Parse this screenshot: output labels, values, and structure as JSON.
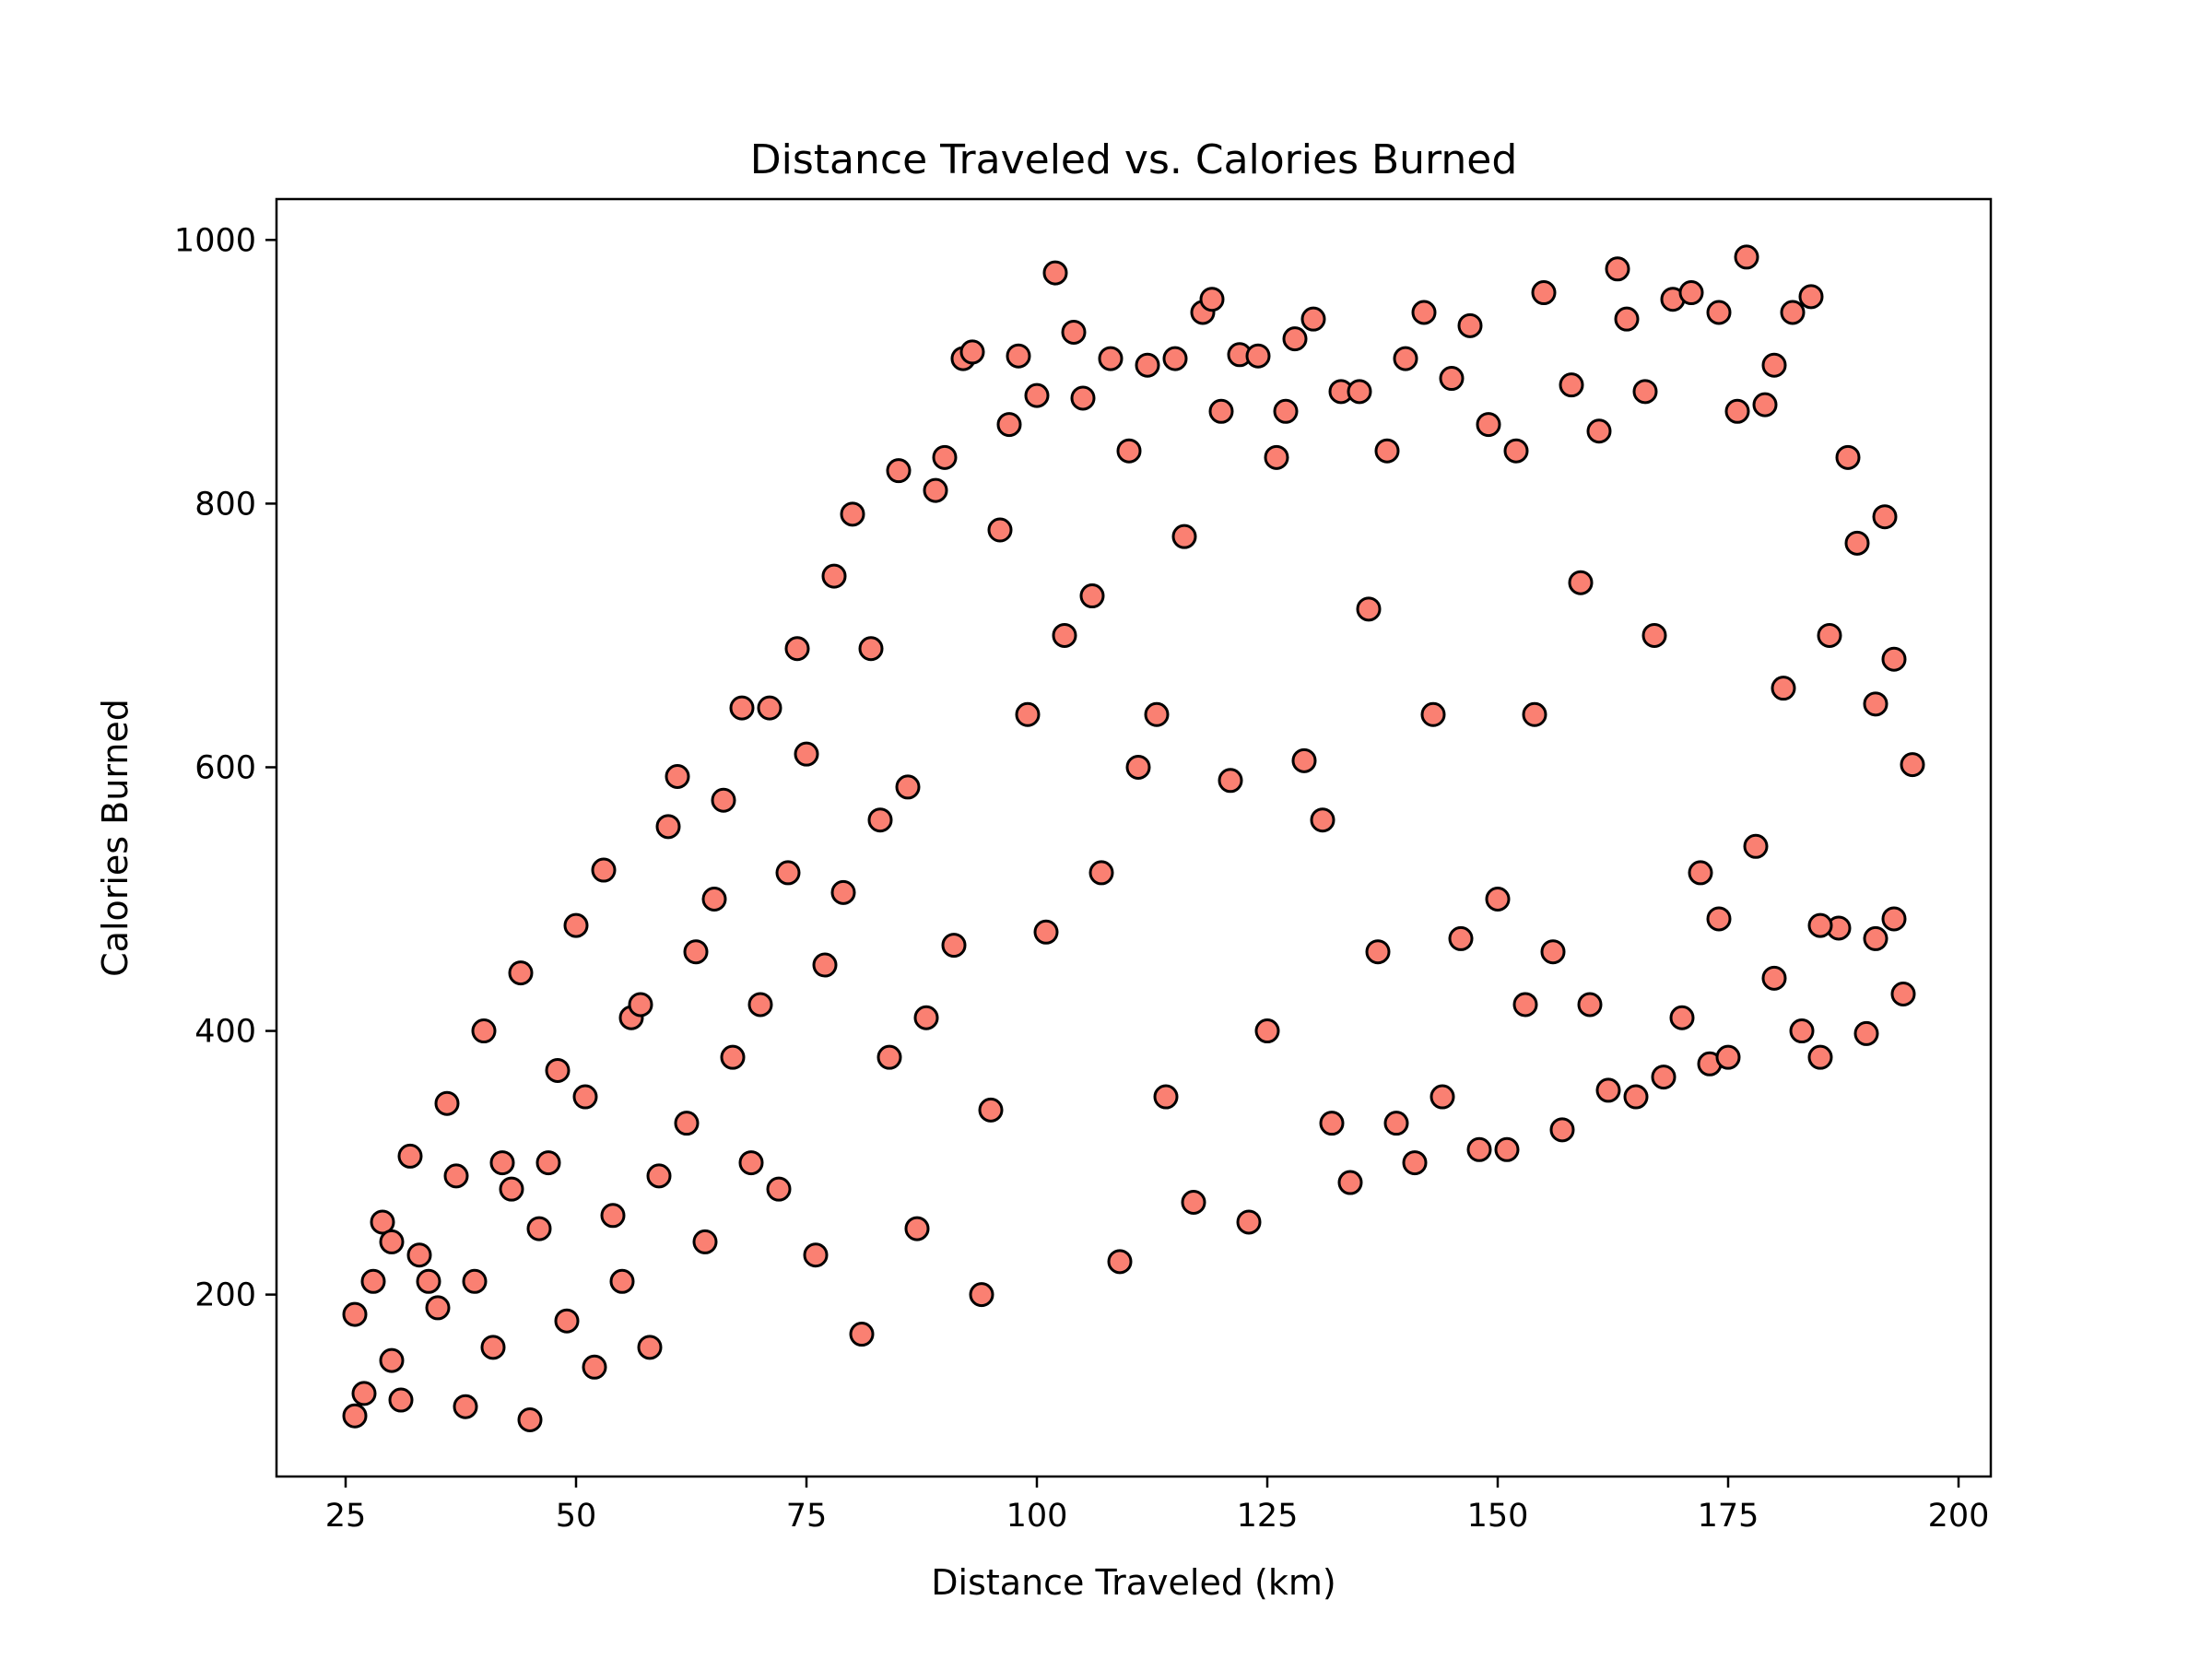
{
  "chart_data": {
    "type": "scatter",
    "title": "Distance Traveled vs. Calories Burned",
    "xlabel": "Distance Traveled (km)",
    "ylabel": "Calories Burned",
    "xlim": [
      17.5,
      203.5
    ],
    "ylim": [
      62,
      1031
    ],
    "xticks": [
      25,
      50,
      75,
      100,
      125,
      150,
      175,
      200
    ],
    "yticks": [
      200,
      400,
      600,
      800,
      1000
    ],
    "grid": false,
    "legend": "none",
    "marker_color": "#FA8072",
    "marker_edge_color": "#000000",
    "series": [
      {
        "points": [
          [
            26,
            108
          ],
          [
            27,
            125
          ],
          [
            26,
            185
          ],
          [
            28,
            210
          ],
          [
            29,
            255
          ],
          [
            31,
            120
          ],
          [
            32,
            305
          ],
          [
            30,
            150
          ],
          [
            33,
            230
          ],
          [
            35,
            190
          ],
          [
            36,
            345
          ],
          [
            38,
            115
          ],
          [
            40,
            400
          ],
          [
            41,
            160
          ],
          [
            42,
            300
          ],
          [
            44,
            444
          ],
          [
            45,
            105
          ],
          [
            46,
            250
          ],
          [
            48,
            370
          ],
          [
            49,
            180
          ],
          [
            50,
            480
          ],
          [
            52,
            145
          ],
          [
            53,
            522
          ],
          [
            55,
            210
          ],
          [
            56,
            410
          ],
          [
            58,
            160
          ],
          [
            60,
            555
          ],
          [
            61,
            593
          ],
          [
            62,
            330
          ],
          [
            64,
            240
          ],
          [
            65,
            500
          ],
          [
            66,
            575
          ],
          [
            68,
            645
          ],
          [
            70,
            420
          ],
          [
            71,
            645
          ],
          [
            72,
            280
          ],
          [
            74,
            690
          ],
          [
            75,
            610
          ],
          [
            76,
            230
          ],
          [
            78,
            745
          ],
          [
            79,
            505
          ],
          [
            80,
            792
          ],
          [
            81,
            170
          ],
          [
            82,
            690
          ],
          [
            84,
            380
          ],
          [
            85,
            825
          ],
          [
            86,
            585
          ],
          [
            87,
            250
          ],
          [
            89,
            810
          ],
          [
            90,
            835
          ],
          [
            91,
            465
          ],
          [
            92,
            910
          ],
          [
            93,
            915
          ],
          [
            94,
            200
          ],
          [
            95,
            340
          ],
          [
            96,
            780
          ],
          [
            97,
            860
          ],
          [
            98,
            912
          ],
          [
            99,
            640
          ],
          [
            100,
            882
          ],
          [
            101,
            475
          ],
          [
            102,
            975
          ],
          [
            104,
            930
          ],
          [
            105,
            880
          ],
          [
            106,
            730
          ],
          [
            107,
            520
          ],
          [
            108,
            910
          ],
          [
            109,
            225
          ],
          [
            110,
            840
          ],
          [
            112,
            905
          ],
          [
            113,
            640
          ],
          [
            114,
            350
          ],
          [
            115,
            910
          ],
          [
            116,
            775
          ],
          [
            117,
            270
          ],
          [
            118,
            945
          ],
          [
            119,
            955
          ],
          [
            120,
            870
          ],
          [
            121,
            590
          ],
          [
            122,
            913
          ],
          [
            123,
            255
          ],
          [
            124,
            912
          ],
          [
            125,
            400
          ],
          [
            126,
            835
          ],
          [
            127,
            870
          ],
          [
            128,
            925
          ],
          [
            129,
            605
          ],
          [
            130,
            940
          ],
          [
            131,
            560
          ],
          [
            132,
            330
          ],
          [
            133,
            885
          ],
          [
            134,
            285
          ],
          [
            135,
            885
          ],
          [
            136,
            720
          ],
          [
            137,
            460
          ],
          [
            138,
            840
          ],
          [
            139,
            330
          ],
          [
            140,
            910
          ],
          [
            141,
            300
          ],
          [
            142,
            945
          ],
          [
            143,
            640
          ],
          [
            144,
            350
          ],
          [
            145,
            895
          ],
          [
            146,
            470
          ],
          [
            147,
            935
          ],
          [
            148,
            310
          ],
          [
            149,
            860
          ],
          [
            150,
            500
          ],
          [
            151,
            310
          ],
          [
            152,
            840
          ],
          [
            153,
            420
          ],
          [
            154,
            640
          ],
          [
            155,
            960
          ],
          [
            156,
            460
          ],
          [
            157,
            325
          ],
          [
            158,
            890
          ],
          [
            159,
            740
          ],
          [
            160,
            420
          ],
          [
            161,
            855
          ],
          [
            162,
            355
          ],
          [
            163,
            978
          ],
          [
            164,
            940
          ],
          [
            165,
            350
          ],
          [
            166,
            885
          ],
          [
            167,
            700
          ],
          [
            168,
            365
          ],
          [
            169,
            955
          ],
          [
            170,
            410
          ],
          [
            171,
            960
          ],
          [
            172,
            520
          ],
          [
            173,
            375
          ],
          [
            174,
            945
          ],
          [
            175,
            380
          ],
          [
            176,
            870
          ],
          [
            177,
            987
          ],
          [
            178,
            540
          ],
          [
            179,
            875
          ],
          [
            180,
            440
          ],
          [
            181,
            660
          ],
          [
            182,
            945
          ],
          [
            183,
            400
          ],
          [
            184,
            957
          ],
          [
            185,
            380
          ],
          [
            186,
            700
          ],
          [
            187,
            478
          ],
          [
            188,
            835
          ],
          [
            190,
            398
          ],
          [
            191,
            648
          ],
          [
            192,
            790
          ],
          [
            193,
            682
          ],
          [
            194,
            428
          ],
          [
            195,
            602
          ],
          [
            30,
            240
          ],
          [
            34,
            210
          ],
          [
            37,
            290
          ],
          [
            39,
            210
          ],
          [
            43,
            280
          ],
          [
            47,
            300
          ],
          [
            51,
            350
          ],
          [
            54,
            260
          ],
          [
            57,
            420
          ],
          [
            59,
            290
          ],
          [
            63,
            460
          ],
          [
            67,
            380
          ],
          [
            69,
            300
          ],
          [
            73,
            520
          ],
          [
            77,
            450
          ],
          [
            83,
            560
          ],
          [
            88,
            410
          ],
          [
            103,
            700
          ],
          [
            111,
            600
          ],
          [
            180,
            905
          ],
          [
            185,
            480
          ],
          [
            174,
            485
          ],
          [
            189,
            770
          ],
          [
            191,
            470
          ],
          [
            193,
            485
          ]
        ]
      }
    ]
  }
}
